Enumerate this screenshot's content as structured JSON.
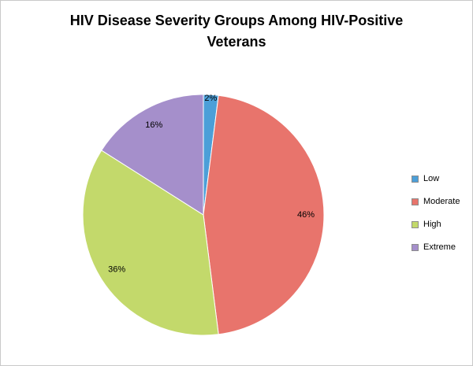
{
  "chart_data": {
    "type": "pie",
    "title": "HIV Disease Severity Groups Among HIV-Positive Veterans",
    "categories": [
      "Low",
      "Moderate",
      "High",
      "Extreme"
    ],
    "values": [
      2,
      46,
      36,
      16
    ],
    "labels": [
      "2%",
      "46%",
      "36%",
      "16%"
    ],
    "colors": [
      "#4C9FD8",
      "#E8746C",
      "#C3D96B",
      "#A58FCB"
    ],
    "legend_position": "right",
    "legend_labels": [
      "Low",
      "Moderate",
      "High",
      "Extreme"
    ],
    "start_angle_deg": 0,
    "direction": "clockwise",
    "background": "#ffffff"
  }
}
